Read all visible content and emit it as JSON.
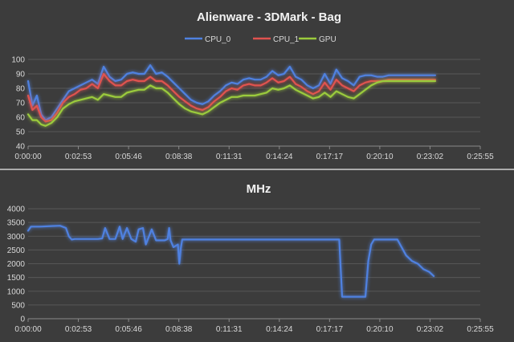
{
  "chart_data": [
    {
      "type": "line",
      "title": "Alienware - 3DMark - Bag",
      "ylim": [
        40,
        100
      ],
      "yticks": [
        40,
        50,
        60,
        70,
        80,
        90,
        100
      ],
      "xticks": [
        "0:00:00",
        "0:02:53",
        "0:05:46",
        "0:08:38",
        "0:11:31",
        "0:14:24",
        "0:17:17",
        "0:20:10",
        "0:23:02",
        "0:25:55"
      ],
      "xlim": [
        0,
        1555
      ],
      "grid": true,
      "legend_position": "top",
      "x": [
        0,
        15,
        30,
        45,
        60,
        80,
        100,
        120,
        140,
        160,
        180,
        200,
        220,
        240,
        260,
        280,
        300,
        320,
        340,
        360,
        380,
        400,
        420,
        440,
        460,
        480,
        500,
        520,
        540,
        560,
        580,
        600,
        620,
        640,
        660,
        680,
        700,
        720,
        740,
        760,
        780,
        800,
        820,
        840,
        860,
        880,
        900,
        920,
        940,
        960,
        980,
        1000,
        1020,
        1040,
        1060,
        1080,
        1100,
        1120,
        1140,
        1160,
        1180,
        1200,
        1220,
        1240,
        1260,
        1280,
        1300,
        1320,
        1340,
        1360,
        1380,
        1400
      ],
      "series": [
        {
          "name": "CPU_0",
          "color": "#4f81e0",
          "values": [
            85,
            68,
            75,
            62,
            58,
            60,
            66,
            72,
            78,
            80,
            82,
            84,
            86,
            83,
            95,
            88,
            85,
            86,
            90,
            91,
            90,
            90,
            96,
            90,
            91,
            88,
            84,
            80,
            76,
            72,
            70,
            69,
            71,
            75,
            78,
            82,
            84,
            83,
            86,
            87,
            86,
            86,
            88,
            92,
            89,
            90,
            95,
            88,
            86,
            82,
            80,
            82,
            90,
            83,
            93,
            87,
            85,
            82,
            88,
            89,
            89,
            88,
            88,
            89,
            89,
            89,
            89,
            89,
            89,
            89,
            89,
            89
          ]
        },
        {
          "name": "CPU_1",
          "color": "#e0524f",
          "values": [
            75,
            65,
            68,
            60,
            57,
            58,
            63,
            70,
            74,
            76,
            79,
            80,
            83,
            80,
            90,
            85,
            82,
            82,
            85,
            86,
            85,
            85,
            88,
            85,
            85,
            82,
            78,
            74,
            71,
            68,
            66,
            65,
            67,
            71,
            74,
            78,
            80,
            79,
            82,
            83,
            82,
            82,
            84,
            87,
            84,
            85,
            88,
            83,
            81,
            78,
            76,
            78,
            84,
            79,
            86,
            82,
            80,
            78,
            82,
            84,
            85,
            85,
            85,
            86,
            86,
            86,
            86,
            86,
            86,
            86,
            86,
            86
          ]
        },
        {
          "name": "GPU",
          "color": "#9bcb3c",
          "values": [
            62,
            58,
            58,
            55,
            54,
            56,
            60,
            66,
            69,
            71,
            72,
            73,
            74,
            72,
            76,
            75,
            74,
            74,
            77,
            78,
            79,
            79,
            82,
            80,
            80,
            77,
            73,
            69,
            66,
            64,
            63,
            62,
            64,
            67,
            70,
            72,
            74,
            74,
            75,
            75,
            75,
            76,
            77,
            80,
            79,
            80,
            82,
            79,
            77,
            75,
            73,
            74,
            77,
            74,
            78,
            76,
            74,
            73,
            76,
            79,
            82,
            84,
            85,
            85,
            85,
            85,
            85,
            85,
            85,
            85,
            85,
            85
          ]
        }
      ]
    },
    {
      "type": "line",
      "title": "MHz",
      "ylim": [
        0,
        4000
      ],
      "yticks": [
        0,
        500,
        1000,
        1500,
        2000,
        2500,
        3000,
        3500,
        4000
      ],
      "xticks": [
        "0:00:00",
        "0:02:53",
        "0:05:46",
        "0:08:38",
        "0:11:31",
        "0:14:24",
        "0:17:17",
        "0:20:10",
        "0:23:02",
        "0:25:55"
      ],
      "xlim": [
        0,
        1555
      ],
      "grid": true,
      "series": [
        {
          "color": "#4f81e0",
          "x": [
            0,
            10,
            40,
            80,
            110,
            130,
            140,
            150,
            160,
            170,
            200,
            240,
            255,
            265,
            280,
            300,
            315,
            325,
            340,
            355,
            370,
            380,
            395,
            405,
            425,
            440,
            470,
            480,
            485,
            490,
            500,
            515,
            520,
            525,
            530,
            600,
            700,
            800,
            900,
            1000,
            1050,
            1070,
            1080,
            1100,
            1140,
            1160,
            1170,
            1180,
            1190,
            1210,
            1250,
            1270,
            1300,
            1320,
            1340,
            1360,
            1380,
            1395
          ],
          "values": [
            3200,
            3350,
            3350,
            3370,
            3380,
            3300,
            3000,
            2880,
            2900,
            2900,
            2900,
            2900,
            2920,
            3300,
            2900,
            2900,
            3350,
            2900,
            3300,
            2900,
            2800,
            3250,
            3300,
            2700,
            3250,
            2850,
            2850,
            2900,
            3300,
            2850,
            2600,
            2700,
            2000,
            2550,
            2880,
            2880,
            2880,
            2880,
            2880,
            2880,
            2880,
            2880,
            800,
            800,
            800,
            800,
            2100,
            2700,
            2880,
            2880,
            2880,
            2880,
            2300,
            2100,
            2000,
            1800,
            1700,
            1550
          ]
        }
      ]
    }
  ]
}
